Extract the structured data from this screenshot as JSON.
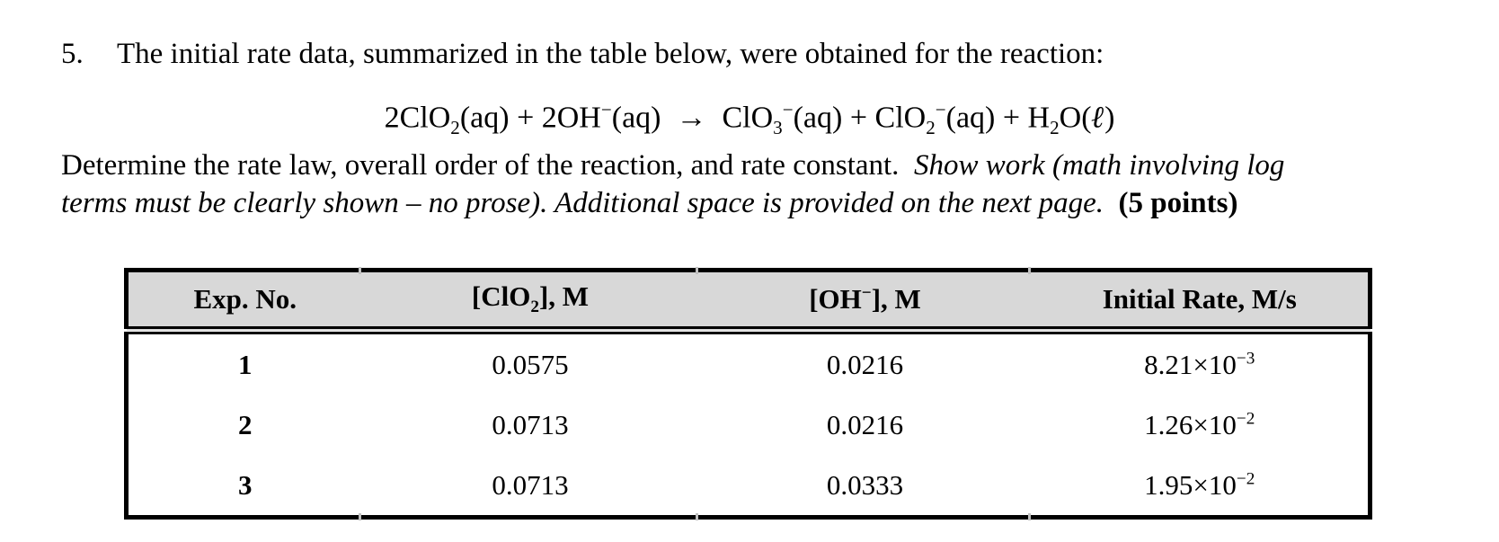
{
  "page": {
    "background_color": "#ffffff",
    "text_color": "#000000"
  },
  "question": {
    "number_label": "5.",
    "intro_text": "The initial rate data, summarized in the table below, were obtained for the reaction:",
    "equation_html": "2ClO<sub>2</sub>(aq) + 2OH<sup>−</sup>(aq)  →  ClO<sub>3</sub><sup>−</sup>(aq) + ClO<sub>2</sub><sup>−</sup>(aq) + H<sub>2</sub>O(<b><i>ℓ</i></b>)",
    "instructions_lines_html": [
      "Determine the rate law, overall order of the reaction, and rate constant.  <i>Show work (math involving log</i>",
      "<i>terms must be clearly shown – no prose). Additional space is provided on the next page.</i>  <b>(5 points)</b>"
    ]
  },
  "table": {
    "header_bg": "#d8d8d8",
    "border_color": "#000000",
    "columns_html": [
      "Exp. No.",
      "[ClO<sub>2</sub>], M",
      "[OH<sup>−</sup>], M",
      "Initial Rate, M/s"
    ],
    "rows": [
      {
        "cells_html": [
          "1",
          "0.0575",
          "0.0216",
          "8.21×10<sup>−3</sup>"
        ]
      },
      {
        "cells_html": [
          "2",
          "0.0713",
          "0.0216",
          "1.26×10<sup>−2</sup>"
        ]
      },
      {
        "cells_html": [
          "3",
          "0.0713",
          "0.0333",
          "1.95×10<sup>−2</sup>"
        ]
      }
    ]
  }
}
